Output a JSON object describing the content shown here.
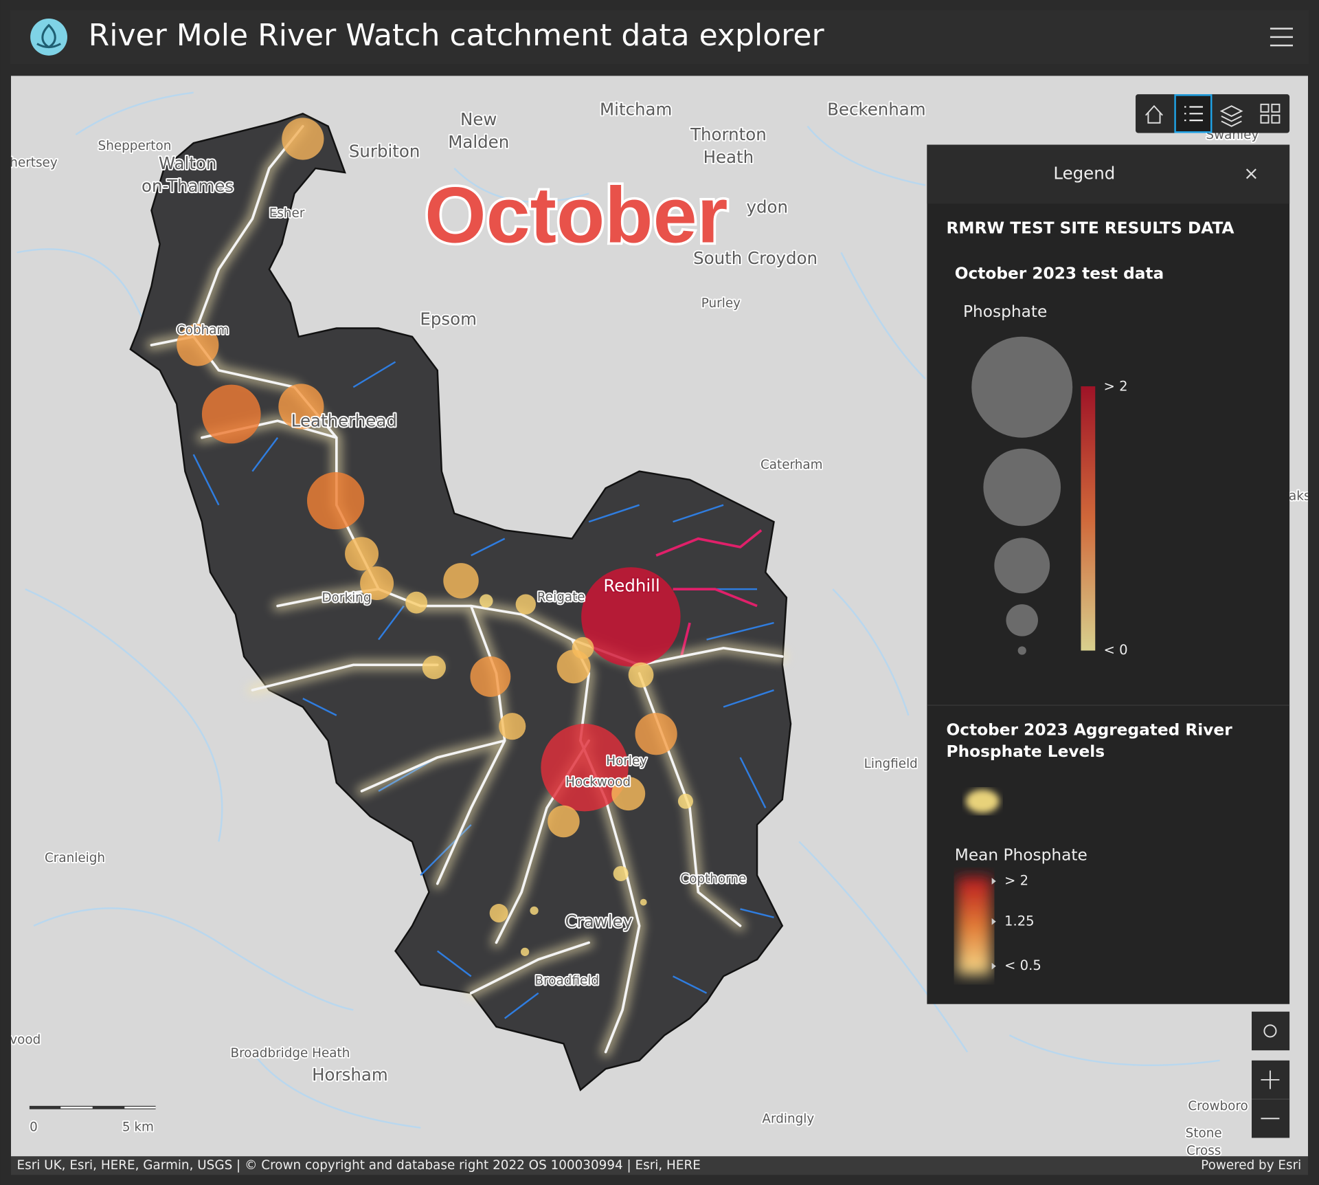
{
  "header": {
    "title": "River Mole River Watch catchment data explorer"
  },
  "overlay": {
    "month": "October"
  },
  "map": {
    "places": [
      "Shepperton",
      "hertsey",
      "Walton",
      "on-Thames",
      "Esher",
      "Surbiton",
      "New",
      "Malden",
      "Mitcham",
      "Thornton",
      "Heath",
      "Beckenham",
      "Swanley",
      "ydon",
      "South Croydon",
      "Purley",
      "Epsom",
      "Cobham",
      "Leatherhead",
      "Caterham",
      "Dorking",
      "Reigate",
      "Redhill",
      "Horley",
      "Hockwood",
      "Lingfield",
      "Cranleigh",
      "Copthorne",
      "Crawley",
      "Broadfield",
      "vood",
      "Broadbridge Heath",
      "Horsham",
      "Ardingly",
      "Crowboro",
      "Stone",
      "Cross",
      "aks"
    ]
  },
  "legend": {
    "title": "Legend",
    "layer": "RMRW TEST SITE RESULTS DATA",
    "sublayer": "October 2023 test data",
    "field": "Phosphate",
    "size_high": "> 2",
    "size_low": "< 0",
    "agg_title": [
      "October 2023 Aggregated River",
      "Phosphate Levels"
    ],
    "agg_field": "Mean Phosphate",
    "heat_labels": [
      "> 2",
      "1.25",
      "< 0.5"
    ]
  },
  "scale": {
    "labels": [
      "0",
      "5 km"
    ]
  },
  "attribution": {
    "credits": "Esri UK, Esri, HERE, Garmin, USGS | © Crown copyright and database right 2022 OS 100030994 | Esri, HERE",
    "powered": "Powered by Esri"
  }
}
